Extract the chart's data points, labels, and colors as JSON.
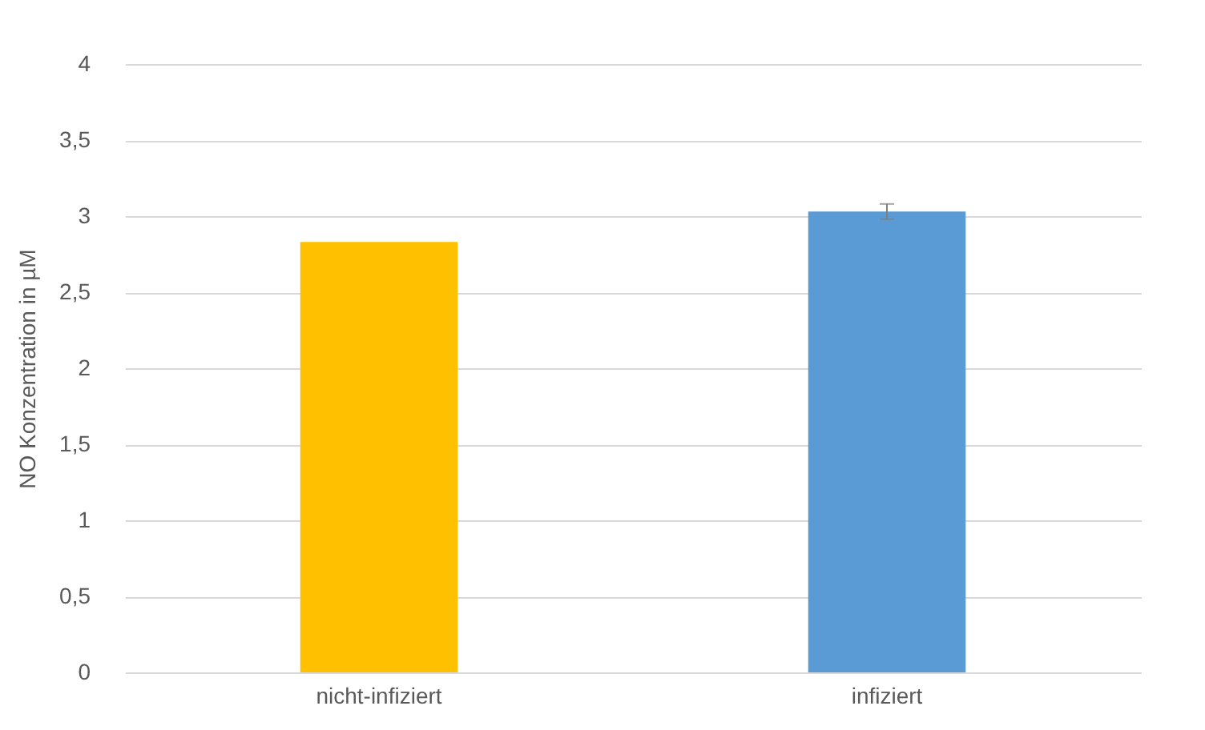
{
  "chart_data": {
    "type": "bar",
    "ylabel": "NO Konzentration in µM",
    "categories": [
      "nicht-infiziert",
      "infiziert"
    ],
    "values": [
      2.83,
      3.03
    ],
    "colors": [
      "#ffc000",
      "#5b9bd5"
    ],
    "errors": [
      null,
      0.05
    ],
    "ylim": [
      0,
      4
    ],
    "yticks": [
      0,
      {
        "value": 0.5,
        "label": "0,5"
      },
      1,
      {
        "value": 1.5,
        "label": "1,5"
      },
      2,
      {
        "value": 2.5,
        "label": "2,5"
      },
      3,
      {
        "value": 3.5,
        "label": "3,5"
      },
      4
    ],
    "grid": "y"
  }
}
